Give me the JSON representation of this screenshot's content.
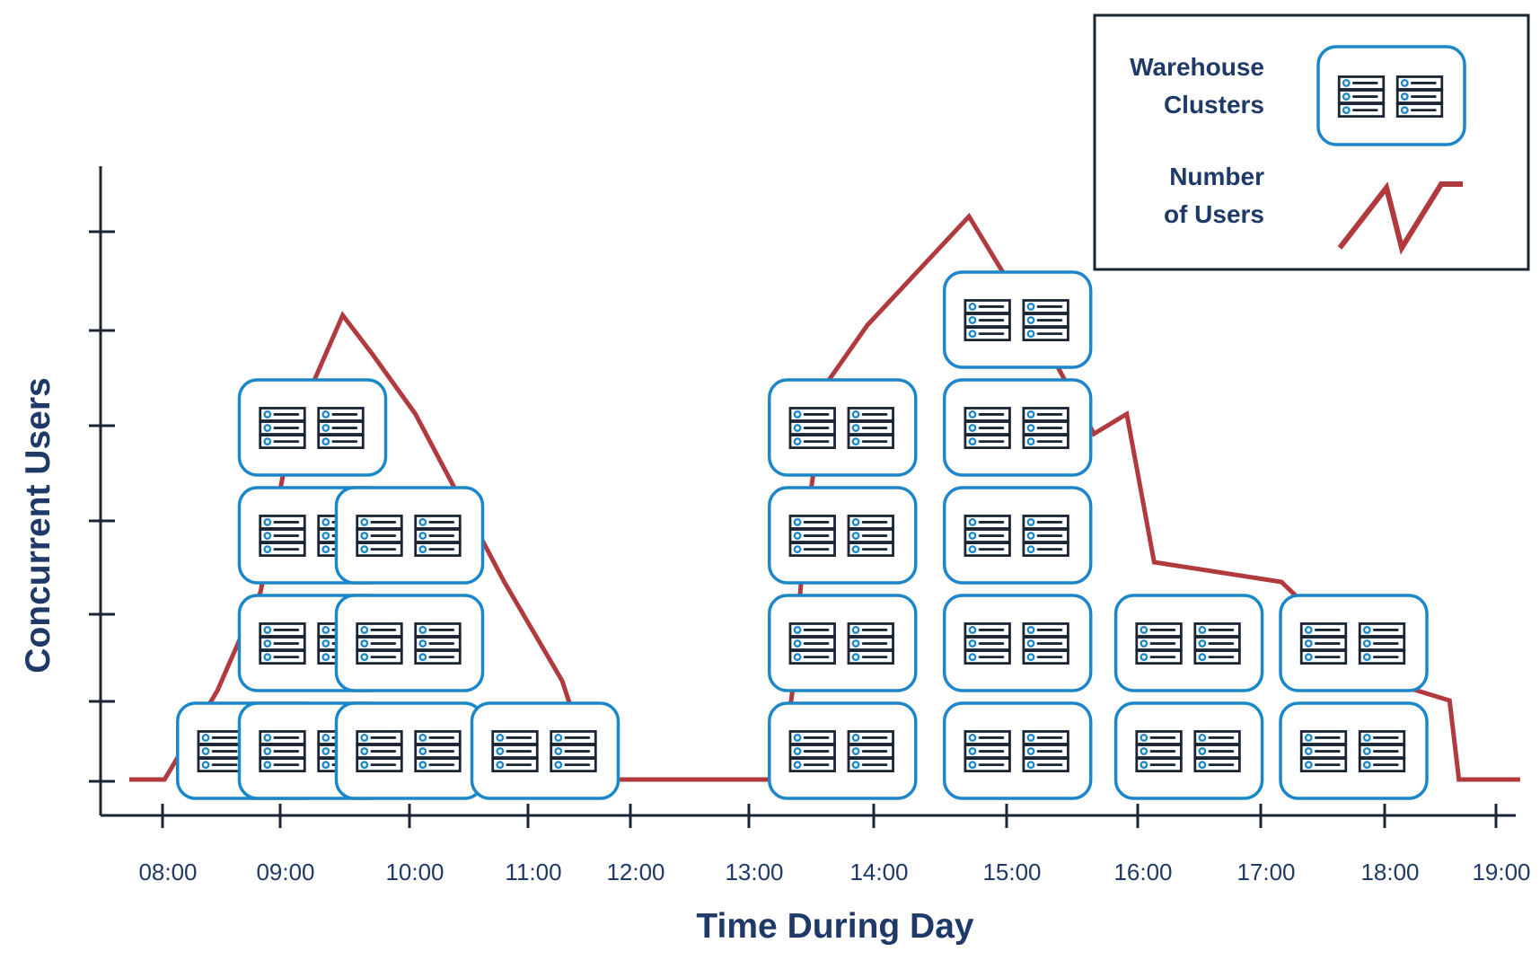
{
  "chart_data": {
    "type": "line",
    "xlabel": "Time During Day",
    "ylabel": "Concurrent Users",
    "x_ticks": [
      "08:00",
      "09:00",
      "10:00",
      "11:00",
      "12:00",
      "13:00",
      "14:00",
      "15:00",
      "16:00",
      "17:00",
      "18:00",
      "19:00"
    ],
    "y_ticks": 7,
    "y_tick_labels": [],
    "grid": false,
    "legend_position": "top-right",
    "legend": [
      {
        "label_lines": [
          "Warehouse",
          "Clusters"
        ],
        "symbol": "server-cluster-icon"
      },
      {
        "label_lines": [
          "Number",
          "of Users"
        ],
        "symbol": "line"
      }
    ],
    "colors": {
      "line": "#b03a3e",
      "cluster_border": "#1b87c9",
      "text": "#1f3a68",
      "axis": "#1c2533"
    },
    "series": [
      {
        "name": "Number of Users",
        "type": "line",
        "points": [
          [
            "07:43",
            0.0
          ],
          [
            "08:01",
            0.0
          ],
          [
            "08:28",
            0.9
          ],
          [
            "08:50",
            1.9
          ],
          [
            "09:05",
            3.5
          ],
          [
            "09:29",
            4.7
          ],
          [
            "09:43",
            4.3
          ],
          [
            "10:03",
            3.7
          ],
          [
            "10:48",
            2.0
          ],
          [
            "11:20",
            1.0
          ],
          [
            "11:39",
            0.0
          ],
          [
            "13:15",
            0.0
          ],
          [
            "13:21",
            0.9
          ],
          [
            "13:27",
            2.5
          ],
          [
            "13:37",
            4.0
          ],
          [
            "13:57",
            4.6
          ],
          [
            "14:43",
            5.7
          ],
          [
            "15:13",
            4.6
          ],
          [
            "15:40",
            3.5
          ],
          [
            "15:55",
            3.7
          ],
          [
            "16:08",
            2.2
          ],
          [
            "17:10",
            2.0
          ],
          [
            "18:00",
            1.0
          ],
          [
            "18:35",
            0.8
          ],
          [
            "18:40",
            0.0
          ],
          [
            "19:13",
            0.0
          ]
        ]
      },
      {
        "name": "Warehouse Clusters",
        "type": "stack",
        "stacks": [
          {
            "time": "08:45",
            "clusters": 1
          },
          {
            "time": "09:15",
            "clusters": 4
          },
          {
            "time": "10:00",
            "clusters": 3
          },
          {
            "time": "11:10",
            "clusters": 1
          },
          {
            "time": "13:45",
            "clusters": 4
          },
          {
            "time": "15:05",
            "clusters": 5
          },
          {
            "time": "16:25",
            "clusters": 2
          },
          {
            "time": "17:45",
            "clusters": 2
          }
        ]
      }
    ]
  }
}
